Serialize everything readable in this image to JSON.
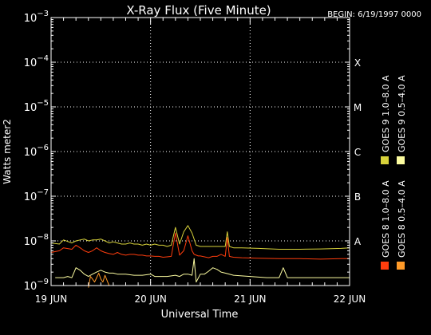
{
  "chart_data": {
    "type": "line",
    "title": "X-Ray Flux (Five Minute)",
    "begin_label": "BEGIN: 6/19/1997 0000",
    "ylabel": "Watts meter2",
    "xlabel": "Universal Time",
    "y_scale": "log",
    "ylim": [
      1e-09,
      0.001
    ],
    "y_ticks": [
      {
        "value": 0.001,
        "base": "10",
        "exp": "−3"
      },
      {
        "value": 0.0001,
        "base": "10",
        "exp": "−4"
      },
      {
        "value": 1e-05,
        "base": "10",
        "exp": "−5"
      },
      {
        "value": 1e-06,
        "base": "10",
        "exp": "−6"
      },
      {
        "value": 1e-07,
        "base": "10",
        "exp": "−7"
      },
      {
        "value": 1e-08,
        "base": "10",
        "exp": "−8"
      },
      {
        "value": 1e-09,
        "base": "10",
        "exp": "−9"
      }
    ],
    "x_ticks": [
      {
        "value": 0,
        "label": "19 JUN"
      },
      {
        "value": 24,
        "label": "20 JUN"
      },
      {
        "value": 48,
        "label": "21 JUN"
      },
      {
        "value": 72,
        "label": "22 JUN"
      }
    ],
    "xlim": [
      0,
      72
    ],
    "class_labels": [
      {
        "value": 0.0001,
        "label": "X"
      },
      {
        "value": 1e-05,
        "label": "M"
      },
      {
        "value": 1e-06,
        "label": "C"
      },
      {
        "value": 1e-07,
        "label": "B"
      },
      {
        "value": 1e-08,
        "label": "A"
      }
    ],
    "grid": true,
    "legend_position": "right",
    "series": [
      {
        "name": "GOES 8  1.0–8.0 A",
        "color": "#ff3d0d",
        "x": [
          0,
          2,
          3,
          5,
          6,
          7,
          8,
          9,
          10,
          11,
          12,
          13,
          14,
          15,
          16,
          17,
          18,
          19,
          20,
          21,
          22,
          23,
          24,
          25,
          26,
          27,
          28,
          29,
          30,
          31,
          32,
          33,
          34,
          34.5,
          35,
          35.5,
          36,
          37,
          38,
          39,
          40,
          41,
          42,
          42.5,
          43,
          43.5,
          44,
          46,
          50,
          55,
          60,
          65,
          70,
          72
        ],
        "y": [
          5.5e-09,
          6e-09,
          7e-09,
          6.5e-09,
          8e-09,
          7e-09,
          6e-09,
          5.5e-09,
          6e-09,
          7e-09,
          6e-09,
          5.5e-09,
          5.2e-09,
          5e-09,
          5.5e-09,
          5e-09,
          4.8e-09,
          5e-09,
          5e-09,
          4.8e-09,
          4.8e-09,
          4.6e-09,
          4.6e-09,
          4.5e-09,
          4.5e-09,
          4.3e-09,
          4.4e-09,
          4.5e-09,
          1.5e-08,
          4.8e-09,
          6e-09,
          1.3e-08,
          6e-09,
          5e-09,
          4.8e-09,
          4.6e-09,
          4.6e-09,
          4.4e-09,
          4.2e-09,
          4.5e-09,
          4.5e-09,
          5e-09,
          4.5e-09,
          1.2e-08,
          4.5e-09,
          4.4e-09,
          4.3e-09,
          4.2e-09,
          4.1e-09,
          4e-09,
          4e-09,
          3.9e-09,
          4e-09,
          4e-09
        ]
      },
      {
        "name": "GOES 8  0.5–4.0 A",
        "color": "#ff9a28",
        "x": [
          9,
          9.5,
          10,
          10.5,
          11,
          11.5,
          12,
          12.5,
          13,
          13.5,
          14
        ],
        "y": [
          9e-10,
          1.6e-09,
          1.4e-09,
          1.2e-09,
          1.5e-09,
          1.9e-09,
          1.4e-09,
          1.2e-09,
          1.7e-09,
          1.3e-09,
          1e-09
        ]
      },
      {
        "name": "GOES 9  1.0–8.0 A",
        "color": "#d8d23a",
        "x": [
          0,
          2,
          3,
          5,
          6,
          7,
          8,
          9,
          10,
          11,
          12,
          13,
          14,
          15,
          16,
          17,
          18,
          19,
          20,
          21,
          22,
          23,
          24,
          25,
          26,
          27,
          28,
          29,
          30,
          31,
          32,
          33,
          34,
          35,
          36,
          37,
          38,
          40,
          42,
          42.5,
          43,
          44,
          46,
          50,
          55,
          60,
          65,
          70,
          72
        ],
        "y": [
          9e-09,
          8.5e-09,
          1.05e-08,
          9e-09,
          1e-08,
          1.05e-08,
          1.1e-08,
          1e-08,
          1.05e-08,
          1.05e-08,
          1.1e-08,
          1e-08,
          9e-09,
          9.5e-09,
          9e-09,
          8.5e-09,
          8.5e-09,
          9e-09,
          8.5e-09,
          8.5e-09,
          8e-09,
          8.5e-09,
          8e-09,
          8.5e-09,
          8e-09,
          8e-09,
          7.5e-09,
          8e-09,
          2e-08,
          8.5e-09,
          1.6e-08,
          2.2e-08,
          1.5e-08,
          8e-09,
          7.5e-09,
          7.5e-09,
          7.5e-09,
          7.5e-09,
          7.5e-09,
          1.6e-08,
          7.5e-09,
          7e-09,
          7e-09,
          6.8e-09,
          6.5e-09,
          6.5e-09,
          6.6e-09,
          6.8e-09,
          7e-09
        ]
      },
      {
        "name": "GOES 9  0.5–4.0 A",
        "color": "#fcfca0",
        "x": [
          1,
          3,
          4,
          5,
          6,
          7,
          8,
          9,
          10,
          11,
          12,
          13,
          14,
          15,
          16,
          17,
          18,
          20,
          22,
          24,
          25,
          26,
          28,
          30,
          31,
          32,
          33,
          34,
          34.5,
          35,
          36,
          37,
          38,
          39,
          40,
          41,
          42,
          44,
          48,
          52,
          55,
          56,
          57,
          60,
          65,
          70,
          72
        ],
        "y": [
          1.5e-09,
          1.5e-09,
          1.6e-09,
          1.5e-09,
          2.5e-09,
          2.2e-09,
          1.8e-09,
          1.6e-09,
          1.8e-09,
          2e-09,
          2.2e-09,
          2e-09,
          1.9e-09,
          1.9e-09,
          1.8e-09,
          1.8e-09,
          1.8e-09,
          1.7e-09,
          1.7e-09,
          1.8e-09,
          1.6e-09,
          1.6e-09,
          1.6e-09,
          1.7e-09,
          1.6e-09,
          1.8e-09,
          1.8e-09,
          1.7e-09,
          4e-09,
          1.2e-09,
          1.8e-09,
          1.8e-09,
          2.1e-09,
          2.5e-09,
          2.3e-09,
          2e-09,
          1.9e-09,
          1.7e-09,
          1.6e-09,
          1.5e-09,
          1.5e-09,
          2.5e-09,
          1.5e-09,
          1.5e-09,
          1.5e-09,
          1.5e-09,
          1.5e-09
        ]
      }
    ]
  }
}
